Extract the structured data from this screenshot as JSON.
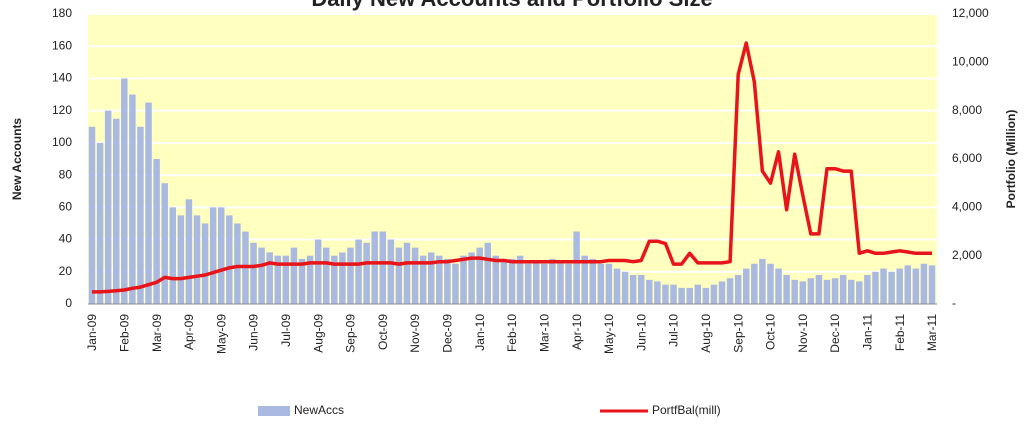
{
  "chart_data": {
    "type": "bar_line",
    "title": "Daily New Accounts and Portfolio Size",
    "y_label": "New Accounts",
    "y2_label": "Portfolio (Million)",
    "categories": [
      "Jan-09",
      null,
      null,
      null,
      "Feb-09",
      null,
      null,
      null,
      "Mar-09",
      null,
      null,
      null,
      "Apr-09",
      null,
      null,
      null,
      "May-09",
      null,
      null,
      null,
      "Jun-09",
      null,
      null,
      null,
      "Jul-09",
      null,
      null,
      null,
      "Aug-09",
      null,
      null,
      null,
      "Sep-09",
      null,
      null,
      null,
      "Oct-09",
      null,
      null,
      null,
      "Nov-09",
      null,
      null,
      null,
      "Dec-09",
      null,
      null,
      null,
      "Jan-10",
      null,
      null,
      null,
      "Feb-10",
      null,
      null,
      null,
      "Mar-10",
      null,
      null,
      null,
      "Apr-10",
      null,
      null,
      null,
      "May-10",
      null,
      null,
      null,
      "Jun-10",
      null,
      null,
      null,
      "Jul-10",
      null,
      null,
      null,
      "Aug-10",
      null,
      null,
      null,
      "Sep-10",
      null,
      null,
      null,
      "Oct-10",
      null,
      null,
      null,
      "Nov-10",
      null,
      null,
      null,
      "Dec-10",
      null,
      null,
      null,
      "Jan-11",
      null,
      null,
      null,
      "Feb-11",
      null,
      null,
      null,
      "Mar-11"
    ],
    "series": [
      {
        "name": "NewAccs",
        "type": "bar",
        "color": "#a9b9e2",
        "values": [
          110,
          100,
          120,
          115,
          140,
          130,
          110,
          125,
          90,
          75,
          60,
          55,
          65,
          55,
          50,
          60,
          60,
          55,
          50,
          45,
          38,
          35,
          32,
          30,
          30,
          35,
          28,
          30,
          40,
          35,
          30,
          32,
          35,
          40,
          38,
          45,
          45,
          40,
          35,
          38,
          35,
          30,
          32,
          30,
          28,
          25,
          30,
          32,
          35,
          38,
          30,
          28,
          28,
          30,
          25,
          26,
          25,
          28,
          26,
          25,
          45,
          30,
          28,
          25,
          25,
          22,
          20,
          18,
          18,
          15,
          14,
          12,
          12,
          10,
          10,
          12,
          10,
          12,
          14,
          16,
          18,
          22,
          25,
          28,
          25,
          22,
          18,
          15,
          14,
          16,
          18,
          15,
          16,
          18,
          15,
          14,
          18,
          20,
          22,
          20,
          22,
          24,
          22,
          25,
          24
        ]
      },
      {
        "name": "PortfBal(mill)",
        "type": "line",
        "axis": "y2",
        "color": "#e8141a",
        "values": [
          500,
          500,
          520,
          550,
          580,
          650,
          700,
          800,
          900,
          1100,
          1050,
          1050,
          1100,
          1150,
          1200,
          1300,
          1400,
          1500,
          1550,
          1550,
          1550,
          1600,
          1700,
          1650,
          1650,
          1650,
          1650,
          1700,
          1700,
          1700,
          1650,
          1650,
          1650,
          1650,
          1700,
          1700,
          1700,
          1700,
          1650,
          1700,
          1700,
          1700,
          1700,
          1750,
          1750,
          1800,
          1850,
          1900,
          1900,
          1850,
          1800,
          1800,
          1750,
          1750,
          1750,
          1750,
          1750,
          1750,
          1750,
          1750,
          1750,
          1750,
          1750,
          1750,
          1800,
          1800,
          1800,
          1750,
          1800,
          2600,
          2600,
          2500,
          1650,
          1650,
          2100,
          1700,
          1700,
          1700,
          1700,
          1750,
          9500,
          10800,
          9200,
          5500,
          5000,
          6300,
          3900,
          6200,
          4500,
          2900,
          2900,
          5600,
          5600,
          5500,
          5500,
          2100,
          2200,
          2100,
          2100,
          2150,
          2200,
          2150,
          2100,
          2100,
          2100
        ]
      }
    ],
    "ylim": [
      0,
      180
    ],
    "yticks": [
      0,
      20,
      40,
      60,
      80,
      100,
      120,
      140,
      160,
      180
    ],
    "y2lim": [
      0,
      12000
    ],
    "y2ticks": [
      {
        "value": 0,
        "label": "-"
      },
      {
        "value": 2000,
        "label": "2,000"
      },
      {
        "value": 4000,
        "label": "4,000"
      },
      {
        "value": 6000,
        "label": "6,000"
      },
      {
        "value": 8000,
        "label": "8,000"
      },
      {
        "value": 10000,
        "label": "10,000"
      },
      {
        "value": 12000,
        "label": "12,000"
      }
    ],
    "grid": true,
    "legend": "bottom"
  }
}
